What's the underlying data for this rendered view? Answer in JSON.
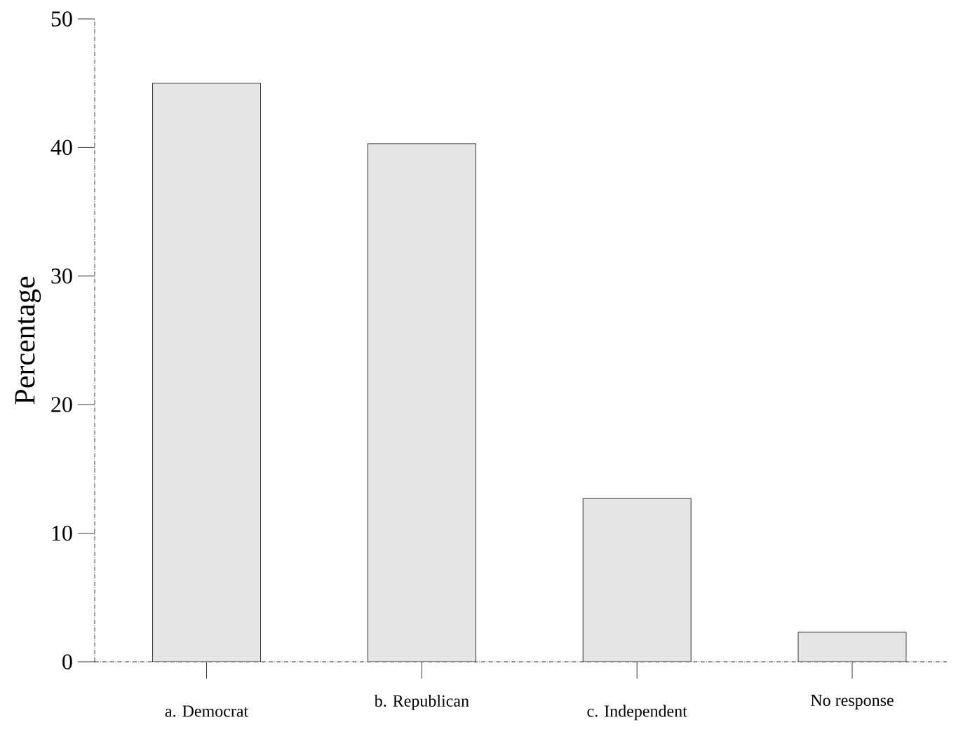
{
  "chart_data": {
    "type": "bar",
    "ylabel": "Percentage",
    "categories": [
      "a. Democrat",
      "b. Republican",
      "c. Independent",
      "No response"
    ],
    "values": [
      45.0,
      40.3,
      12.7,
      2.3
    ],
    "color": "#e6e6e6",
    "ylim": [
      0,
      50
    ],
    "yticks": [
      0,
      10,
      20,
      30,
      40,
      50
    ]
  }
}
